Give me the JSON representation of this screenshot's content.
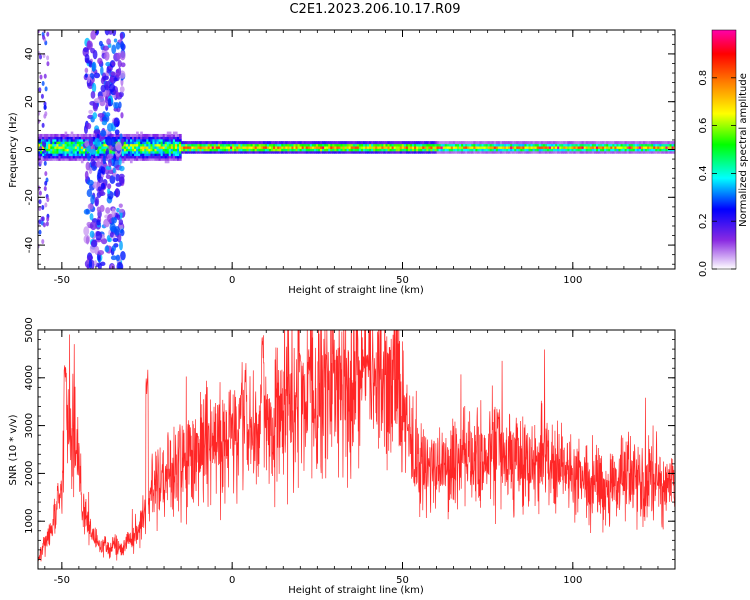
{
  "title": "C2E1.2023.206.10.17.R09",
  "chart_data": [
    {
      "type": "heatmap",
      "title": "",
      "xlabel": "Height of straight line (km)",
      "ylabel": "Frequency (Hz)",
      "xlim": [
        -57,
        130
      ],
      "ylim": [
        -50,
        50
      ],
      "xticks": [
        -50,
        0,
        50,
        100
      ],
      "yticks": [
        -40,
        -20,
        0,
        20,
        40
      ],
      "colorbar": {
        "label": "Normalized spectral amplitude",
        "range": [
          0,
          1
        ],
        "ticks": [
          "0.0",
          "0.2",
          "0.4",
          "0.6",
          "0.8"
        ],
        "colormap": [
          "#ffffff",
          "#8a2be2",
          "#0000ff",
          "#00ffff",
          "#00ff00",
          "#ffff00",
          "#ff7f00",
          "#ff0000",
          "#ff00aa"
        ]
      },
      "features": [
        {
          "desc": "strong band near 0 Hz",
          "x_range": [
            -57,
            130
          ],
          "freq_center": 1,
          "amplitude": 0.75
        },
        {
          "desc": "broadband noise",
          "x_range": [
            -43,
            -32
          ],
          "freq_range": [
            -50,
            50
          ],
          "amplitude": 0.3
        }
      ]
    },
    {
      "type": "line",
      "title": "",
      "xlabel": "Height of straight line (km)",
      "ylabel": "SNR (10 * v/v)",
      "xlim": [
        -57,
        130
      ],
      "ylim": [
        0,
        5000
      ],
      "xticks": [
        -50,
        0,
        50,
        100
      ],
      "yticks": [
        1000,
        2000,
        3000,
        4000,
        5000
      ],
      "color": "#ff0000",
      "envelope": {
        "x": [
          -57,
          -53,
          -50,
          -48,
          -46,
          -44,
          -42,
          -40,
          -38,
          -35,
          -32,
          -29,
          -27,
          -25,
          -22,
          -19,
          -16,
          -13,
          -10,
          -7,
          -4,
          -1,
          2,
          5,
          8,
          11,
          14,
          17,
          20,
          23,
          26,
          30,
          35,
          40,
          44,
          47,
          50,
          53,
          57,
          62,
          67,
          72,
          77,
          82,
          87,
          92,
          97,
          100,
          104,
          108,
          112,
          116,
          120,
          125,
          130
        ],
        "y": [
          200,
          800,
          1800,
          3400,
          2700,
          1400,
          900,
          600,
          450,
          450,
          500,
          650,
          900,
          1300,
          1800,
          2000,
          2100,
          2400,
          2500,
          2600,
          2650,
          2700,
          2800,
          2850,
          2900,
          3200,
          3300,
          3400,
          3650,
          3750,
          3800,
          3900,
          3950,
          4000,
          4050,
          4100,
          3400,
          2400,
          2100,
          2200,
          2250,
          2300,
          2350,
          2200,
          2150,
          2300,
          2200,
          1900,
          1800,
          1700,
          1800,
          1900,
          1850,
          1800,
          1800
        ]
      },
      "spikes": [
        {
          "x": -49,
          "y": 4600
        },
        {
          "x": -25,
          "y": 4200
        },
        {
          "x": 4,
          "y": 4100
        },
        {
          "x": 9,
          "y": 5000
        },
        {
          "x": 20,
          "y": 4600
        },
        {
          "x": 40,
          "y": 4700
        },
        {
          "x": 78,
          "y": 3400
        }
      ]
    }
  ]
}
